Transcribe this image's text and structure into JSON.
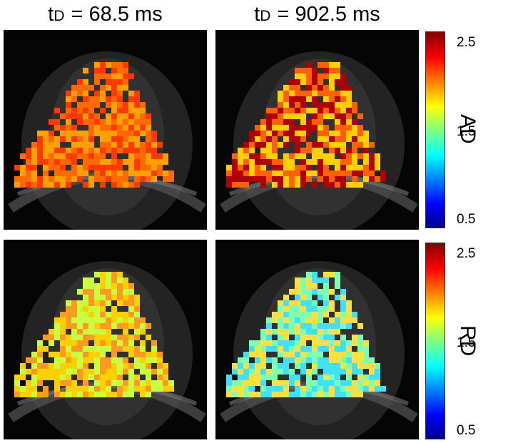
{
  "columns": [
    {
      "prefix": "t",
      "sub": "D",
      "rest": " = 68.5 ms"
    },
    {
      "prefix": "t",
      "sub": "D",
      "rest": " = 902.5 ms"
    }
  ],
  "rows": [
    {
      "label": "AD",
      "colorbar": {
        "max": "2.5",
        "mid": "1.5",
        "min": "0.5"
      }
    },
    {
      "label": "RD",
      "colorbar": {
        "max": "2.5",
        "mid": "1.5",
        "min": "0.5"
      }
    }
  ],
  "colormap": "jet",
  "panel_dominant_colors": {
    "ad_68_5": [
      "#ff3a00",
      "#ff6a00",
      "#ffa000"
    ],
    "ad_902_5": [
      "#b00000",
      "#ff6000",
      "#ffd000"
    ],
    "rd_68_5": [
      "#ffd000",
      "#ff9a20",
      "#c8ff40"
    ],
    "rd_902_5": [
      "#7fffb0",
      "#40e0ff",
      "#ffe040"
    ]
  }
}
